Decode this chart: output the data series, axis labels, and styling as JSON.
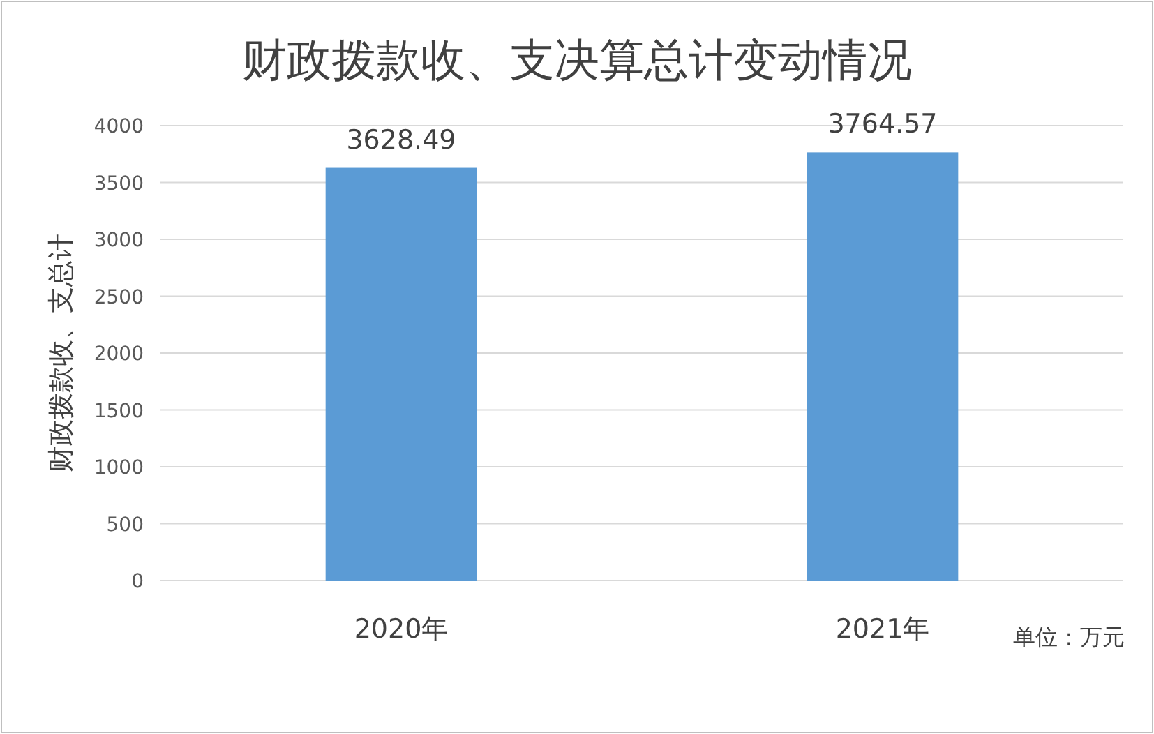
{
  "chart_data": {
    "type": "bar",
    "title": "财政拨款收、支决算总计变动情况",
    "ylabel": "财政拨款收、支总计",
    "categories": [
      "2020年",
      "2021年"
    ],
    "values": [
      3628.49,
      3764.57
    ],
    "color": "#5b9bd5",
    "ylim": [
      0,
      4000
    ],
    "yticks": [
      0,
      500,
      1000,
      1500,
      2000,
      2500,
      3000,
      3500,
      4000
    ],
    "grid": "y",
    "data_labels": true,
    "annotations": [
      "单位：万元"
    ]
  }
}
